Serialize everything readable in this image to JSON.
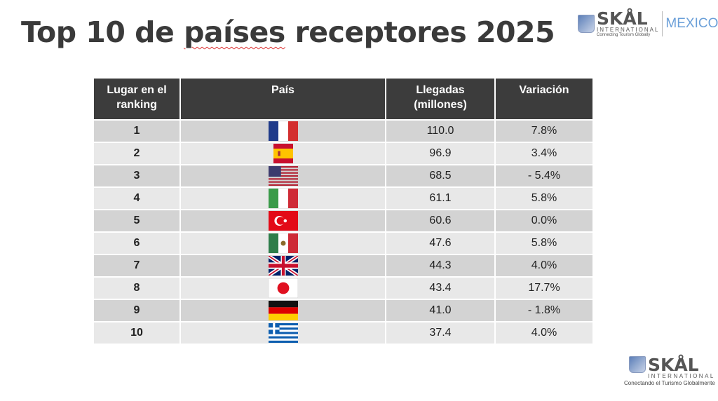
{
  "title_pre": "Top 10 de ",
  "title_word": "países",
  "title_post": " receptores 2025",
  "logo_top": {
    "name": "SKÅL",
    "sub": "INTERNATIONAL",
    "tagline": "Connecting Tourism Globally",
    "region": "MEXICO"
  },
  "logo_bottom": {
    "name": "SKÅL",
    "sub": "INTERNATIONAL",
    "tagline": "Conectando el Turismo Globalmente"
  },
  "headers": [
    "Lugar en el ranking",
    "País",
    "Llegadas (millones)",
    "Variación"
  ],
  "rows": [
    {
      "rank": "1",
      "flag": "france-flag",
      "arrivals": "110.0",
      "variation": "7.8%"
    },
    {
      "rank": "2",
      "flag": "spain-flag",
      "arrivals": "96.9",
      "variation": "3.4%"
    },
    {
      "rank": "3",
      "flag": "usa-flag",
      "arrivals": "68.5",
      "variation": "- 5.4%"
    },
    {
      "rank": "4",
      "flag": "italy-flag",
      "arrivals": "61.1",
      "variation": "5.8%"
    },
    {
      "rank": "5",
      "flag": "turkey-flag",
      "arrivals": "60.6",
      "variation": "0.0%"
    },
    {
      "rank": "6",
      "flag": "mexico-flag",
      "arrivals": "47.6",
      "variation": "5.8%"
    },
    {
      "rank": "7",
      "flag": "uk-flag",
      "arrivals": "44.3",
      "variation": "4.0%"
    },
    {
      "rank": "8",
      "flag": "japan-flag",
      "arrivals": "43.4",
      "variation": "17.7%"
    },
    {
      "rank": "9",
      "flag": "germany-flag",
      "arrivals": "41.0",
      "variation": "- 1.8%"
    },
    {
      "rank": "10",
      "flag": "greece-flag",
      "arrivals": "37.4",
      "variation": "4.0%"
    }
  ]
}
